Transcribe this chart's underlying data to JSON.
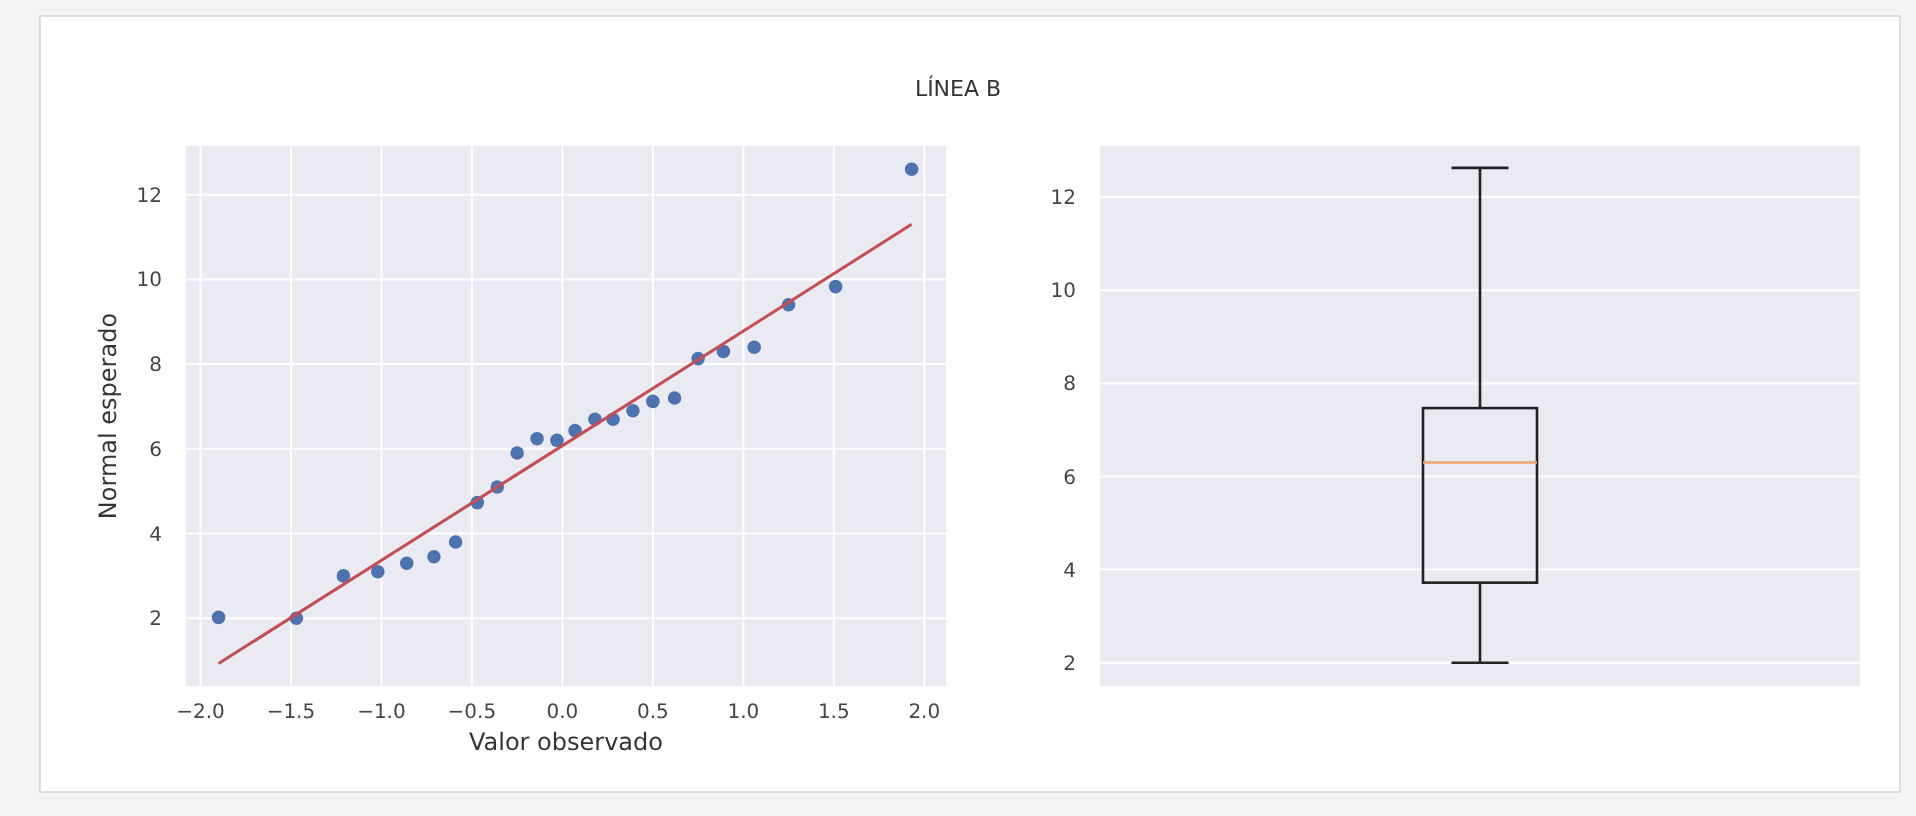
{
  "chart_data": [
    {
      "type": "scatter",
      "title": "LÍNEA B",
      "xlabel": "Valor observado",
      "ylabel": "Normal esperado",
      "xlim": [
        -2.08,
        2.12
      ],
      "ylim": [
        0.4,
        13.15
      ],
      "xticks": [
        {
          "value": -2,
          "label": "−2.0"
        },
        {
          "value": -1.5,
          "label": "−1.5"
        },
        {
          "value": -1,
          "label": "−1.0"
        },
        {
          "value": -0.5,
          "label": "−0.5"
        },
        {
          "value": 0,
          "label": "0.0"
        },
        {
          "value": 0.5,
          "label": "0.5"
        },
        {
          "value": 1,
          "label": "1.0"
        },
        {
          "value": 1.5,
          "label": "1.5"
        },
        {
          "value": 2,
          "label": "2.0"
        }
      ],
      "yticks": [
        2,
        4,
        6,
        8,
        10,
        12
      ],
      "grid": true,
      "series": [
        {
          "type": "scatter",
          "marker": "circle",
          "color": "#4c72b0",
          "x": [
            -1.9,
            -1.47,
            -1.21,
            -1.02,
            -0.86,
            -0.71,
            -0.59,
            -0.47,
            -0.36,
            -0.25,
            -0.14,
            -0.03,
            0.07,
            0.18,
            0.28,
            0.39,
            0.5,
            0.62,
            0.75,
            0.89,
            1.06,
            1.25,
            1.51,
            1.93
          ],
          "values": [
            2.02,
            2.0,
            3.0,
            3.1,
            3.3,
            3.45,
            3.8,
            4.73,
            5.1,
            5.9,
            6.24,
            6.2,
            6.43,
            6.7,
            6.7,
            6.9,
            7.12,
            7.2,
            8.13,
            8.3,
            8.4,
            9.4,
            9.83,
            12.6
          ]
        },
        {
          "type": "line",
          "color": "#c44e52",
          "x": [
            -1.9,
            1.93
          ],
          "values": [
            0.93,
            11.3
          ]
        }
      ]
    },
    {
      "type": "box",
      "categories": [
        null
      ],
      "ylim": [
        1.5,
        13.1
      ],
      "yticks": [
        2,
        4,
        6,
        8,
        10,
        12
      ],
      "grid": "y",
      "tick_labels": "y",
      "series": [
        {
          "color": "#222222",
          "boxes": [
            {
              "low": 2.0,
              "q1": 3.72,
              "median": 6.3,
              "q3": 7.47,
              "high": 12.63
            }
          ]
        }
      ]
    }
  ]
}
